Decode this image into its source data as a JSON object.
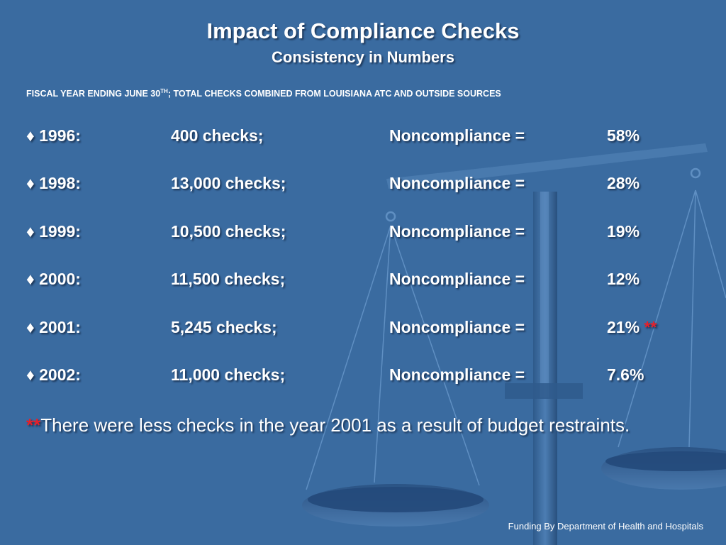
{
  "slide": {
    "title": "Impact of Compliance Checks",
    "subtitle": "Consistency in Numbers",
    "fiscal_note_prefix": "FISCAL YEAR ENDING JUNE 30",
    "fiscal_note_sup": "TH",
    "fiscal_note_suffix": "; TOTAL CHECKS COMBINED FROM LOUISIANA ATC AND OUTSIDE SOURCES",
    "bullet": "♦",
    "rows": [
      {
        "year": "1996:",
        "checks": "400 checks;",
        "label": "Noncompliance =",
        "pct": "58%",
        "flag": ""
      },
      {
        "year": "1998:",
        "checks": "13,000 checks;",
        "label": "Noncompliance =",
        "pct": "28%",
        "flag": ""
      },
      {
        "year": "1999:",
        "checks": "10,500 checks;",
        "label": "Noncompliance =",
        "pct": "19%",
        "flag": ""
      },
      {
        "year": "2000:",
        "checks": "11,500 checks;",
        "label": "Noncompliance =",
        "pct": "12%",
        "flag": ""
      },
      {
        "year": "2001:",
        "checks": "5,245 checks;",
        "label": "Noncompliance =",
        "pct": "21%",
        "flag": "**"
      },
      {
        "year": "2002:",
        "checks": "11,000 checks;",
        "label": "Noncompliance =",
        "pct": "7.6%",
        "flag": ""
      }
    ],
    "footnote_mark": "**",
    "footnote_text": "There were less checks in the year 2001 as a result of budget restraints.",
    "credit": "Funding By Department of Health and Hospitals"
  },
  "colors": {
    "background": "#3a6ba0",
    "text": "#ffffff",
    "accent": "#e8202a"
  },
  "icons": [
    "scales-of-justice-icon"
  ]
}
